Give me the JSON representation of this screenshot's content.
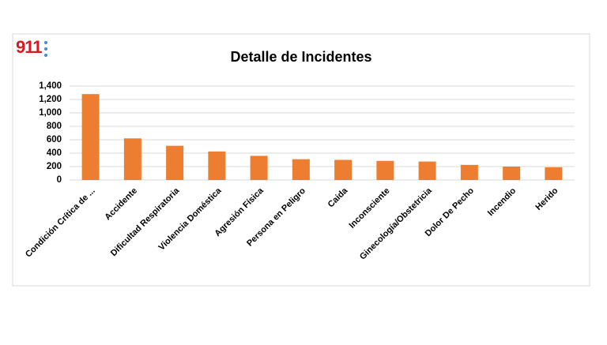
{
  "logo": "911",
  "chart_data": {
    "type": "bar",
    "title": "Detalle de Incidentes",
    "categories": [
      "Condición Crítica de ...",
      "Accidente",
      "Dificultad Respiratoria",
      "Violencia Doméstica",
      "Agresión Física",
      "Persona en Peligro",
      "Caida",
      "Inconsciente",
      "Ginecología/Obstetricia",
      "Dolor De Pecho",
      "Incendio",
      "Herido"
    ],
    "values": [
      1280,
      620,
      510,
      425,
      360,
      310,
      300,
      285,
      275,
      225,
      200,
      190
    ],
    "color": "#ed7d31",
    "ylim": [
      0,
      1400
    ],
    "yticks": [
      0,
      200,
      400,
      600,
      800,
      {
        "value": 1000,
        "label": "1,000"
      },
      {
        "value": 1200,
        "label": "1,200"
      },
      {
        "value": 1400,
        "label": "1,400"
      }
    ],
    "grid": true
  }
}
